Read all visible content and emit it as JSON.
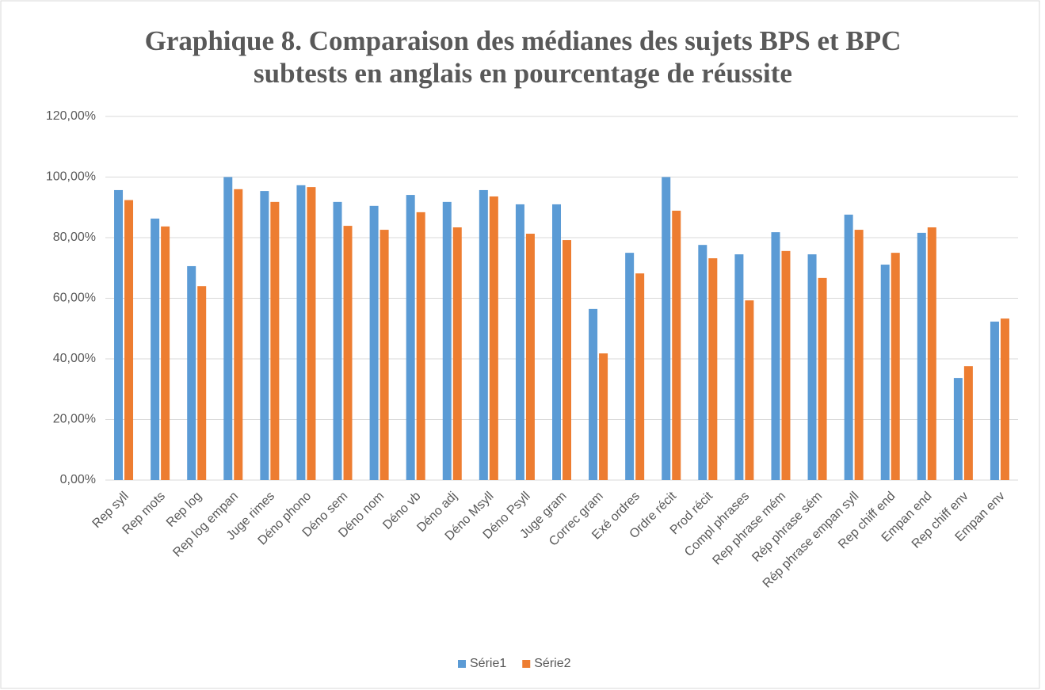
{
  "chart_data": {
    "type": "bar",
    "title": [
      "Graphique 8. Comparaison des médianes des sujets BPS et BPC",
      "subtests en anglais en pourcentage de réussite"
    ],
    "categories": [
      "Rep syll",
      "Rep mots",
      "Rep log",
      "Rep log empan",
      "Juge rimes",
      "Déno phono",
      "Déno sem",
      "Déno nom",
      "Déno vb",
      "Déno adj",
      "Déno Msyll",
      "Déno Psyll",
      "Juge gram",
      "Correc gram",
      "Exé ordres",
      "Ordre récit",
      "Prod récit",
      "Compl phrases",
      "Rep phrase mém",
      "Rép phrase sém",
      "Rép phrase empan syll",
      "Rep chiff end",
      "Empan end",
      "Rep chiff env",
      "Empan env"
    ],
    "series": [
      {
        "name": "Série1",
        "color": "#5b9bd5",
        "values": [
          95.7,
          86.3,
          70.6,
          100,
          95.4,
          97.3,
          91.8,
          90.5,
          94.1,
          91.8,
          95.7,
          91,
          91,
          56.5,
          75,
          100,
          77.6,
          74.5,
          81.8,
          74.5,
          87.6,
          71.1,
          81.6,
          33.7,
          52.3
        ]
      },
      {
        "name": "Série2",
        "color": "#ed7d31",
        "values": [
          92.4,
          83.7,
          64,
          96,
          91.8,
          96.7,
          83.9,
          82.6,
          88.4,
          83.4,
          93.6,
          81.3,
          79.2,
          41.8,
          68.2,
          88.9,
          73.2,
          59.3,
          75.6,
          66.7,
          82.6,
          75,
          83.4,
          37.6,
          53.3
        ]
      }
    ],
    "ylim": [
      0,
      120
    ],
    "yticks": [
      {
        "value": 0,
        "label": "0,00%"
      },
      {
        "value": 20,
        "label": "20,00%"
      },
      {
        "value": 40,
        "label": "40,00%"
      },
      {
        "value": 60,
        "label": "60,00%"
      },
      {
        "value": 80,
        "label": "80,00%"
      },
      {
        "value": 100,
        "label": "100,00%"
      },
      {
        "value": 120,
        "label": "120,00%"
      }
    ],
    "grid": true,
    "legend": "bottom"
  }
}
